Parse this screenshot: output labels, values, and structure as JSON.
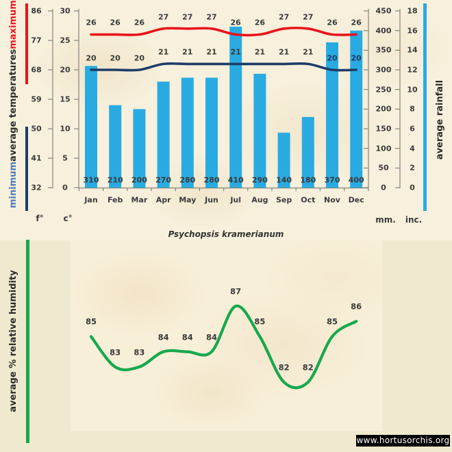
{
  "title": "Psychopsis kramerianum",
  "watermark": "www.hortusorchis.org",
  "legends": {
    "minimum": "minimum",
    "average_temperatures": "average  temperatures",
    "maximum": "maximum",
    "average_rainfall": "average rainfall",
    "average_humidity": "average  %  relative humidity"
  },
  "units": {
    "fahrenheit": "f°",
    "celsius": "c°",
    "millimeters": "mm.",
    "inches": "inc."
  },
  "colors": {
    "max_temp": "#e8141c",
    "min_temp": "#1e3c69",
    "rainfall": "#29abe2",
    "humidity": "#17a84e",
    "label": "#3a3a3a",
    "novdec_min_label": "#1f3864",
    "legend_min_text": "#4a7ab5",
    "axis": "#85837c",
    "paper": "#f7f0dc",
    "page_bg": "#efeacf"
  },
  "chart_data": [
    {
      "type": "bar",
      "name": "average rainfall (mm)",
      "categories": [
        "Jan",
        "Feb",
        "Mar",
        "Apr",
        "May",
        "Jun",
        "Jul",
        "Aug",
        "Sep",
        "Oct",
        "Nov",
        "Dec"
      ],
      "values": [
        310,
        210,
        200,
        270,
        280,
        280,
        410,
        290,
        140,
        180,
        370,
        400
      ],
      "ylabel": "average rainfall",
      "axis_mm_ticks": [
        450,
        400,
        350,
        300,
        250,
        200,
        150,
        100,
        50,
        0
      ],
      "axis_inches_ticks": [
        18,
        16,
        14,
        12,
        10,
        8,
        6,
        4,
        2,
        0
      ],
      "ylim_mm": [
        0,
        450
      ],
      "legend_position": "right-vertical",
      "grid": false
    },
    {
      "type": "line",
      "name": "maximum average temperature (°C)",
      "categories": [
        "Jan",
        "Feb",
        "Mar",
        "Apr",
        "May",
        "Jun",
        "Jul",
        "Aug",
        "Sep",
        "Oct",
        "Nov",
        "Dec"
      ],
      "values": [
        26,
        26,
        26,
        27,
        27,
        27,
        26,
        26,
        27,
        27,
        26,
        26
      ],
      "axis_celsius_ticks": [
        30,
        25,
        20,
        15,
        10,
        5,
        0
      ],
      "axis_fahrenheit_ticks": [
        86,
        77,
        68,
        59,
        50,
        41,
        32
      ],
      "ylim_celsius": [
        0,
        30
      ],
      "smoothed": true
    },
    {
      "type": "line",
      "name": "minimum average temperature (°C)",
      "categories": [
        "Jan",
        "Feb",
        "Mar",
        "Apr",
        "May",
        "Jun",
        "Jul",
        "Aug",
        "Sep",
        "Oct",
        "Nov",
        "Dec"
      ],
      "values": [
        20,
        20,
        20,
        21,
        21,
        21,
        21,
        21,
        21,
        21,
        20,
        20
      ],
      "smoothed": true
    },
    {
      "type": "line",
      "name": "average % relative humidity",
      "categories": [
        "Jan",
        "Feb",
        "Mar",
        "Apr",
        "May",
        "Jun",
        "Jul",
        "Aug",
        "Sep",
        "Oct",
        "Nov",
        "Dec"
      ],
      "values": [
        85,
        83,
        83,
        84,
        84,
        84,
        87,
        85,
        82,
        82,
        85,
        86
      ],
      "smoothed": true
    }
  ]
}
